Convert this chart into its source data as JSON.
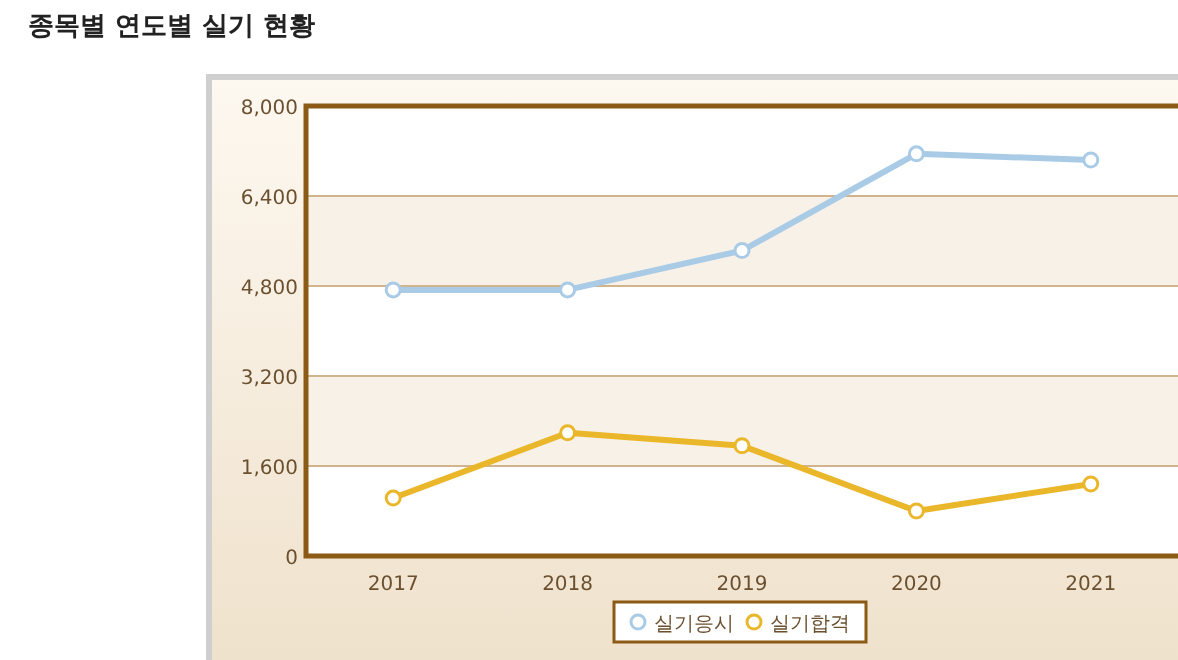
{
  "chart_data": {
    "type": "line",
    "title": "종목별 연도별 실기 현황",
    "categories": [
      "2017",
      "2018",
      "2019",
      "2020",
      "2021"
    ],
    "series": [
      {
        "name": "실기응시",
        "color": "#a9cbe6",
        "values": [
          4730,
          4730,
          5430,
          7150,
          7040
        ]
      },
      {
        "name": "실기합격",
        "color": "#eab72a",
        "values": [
          1030,
          2190,
          1960,
          800,
          1280
        ]
      }
    ],
    "ylim": [
      0,
      8000
    ],
    "yticks": [
      {
        "value": 0,
        "label": "0"
      },
      {
        "value": 1600,
        "label": "1,600"
      },
      {
        "value": 3200,
        "label": "3,200"
      },
      {
        "value": 4800,
        "label": "4,800"
      },
      {
        "value": 6400,
        "label": "6,400"
      },
      {
        "value": 8000,
        "label": "8,000"
      }
    ],
    "grid": "y",
    "legend": "bottom",
    "marker": "circle",
    "line_style": "solid"
  }
}
